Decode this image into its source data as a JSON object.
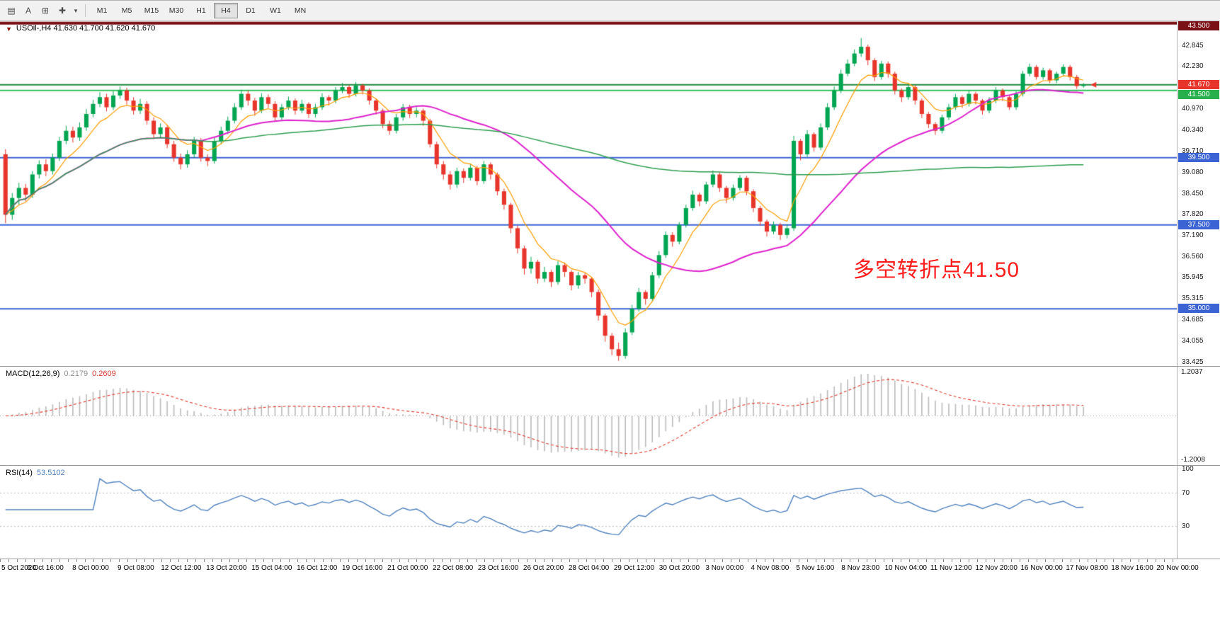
{
  "toolbar": {
    "icon_buttons": [
      {
        "name": "chart-grid-icon",
        "glyph": "▤"
      },
      {
        "name": "text-label-icon",
        "glyph": "A"
      },
      {
        "name": "template-icon",
        "glyph": "⊞"
      },
      {
        "name": "crosshair-icon",
        "glyph": "✚"
      },
      {
        "name": "dropdown-caret-icon",
        "glyph": "▾"
      }
    ],
    "timeframes": [
      {
        "label": "M1",
        "selected": false
      },
      {
        "label": "M5",
        "selected": false
      },
      {
        "label": "M15",
        "selected": false
      },
      {
        "label": "M30",
        "selected": false
      },
      {
        "label": "H1",
        "selected": false
      },
      {
        "label": "H4",
        "selected": true
      },
      {
        "label": "D1",
        "selected": false
      },
      {
        "label": "W1",
        "selected": false
      },
      {
        "label": "MN",
        "selected": false
      }
    ]
  },
  "chart": {
    "title_marker": "▼",
    "symbol_title": "USOil-,H4 41.630 41.700 41.620 41.670",
    "annotation": "多空转折点41.50",
    "colors": {
      "up": "#00a551",
      "down": "#e8352c",
      "macd_hist": "#bdbdbd",
      "macd_signal": "#e03c31",
      "rsi_line": "#4f81bd",
      "level_blue": "#3b63d4",
      "tag_dark_red": "#7a1016",
      "tag_red": "#e8352c",
      "tag_green": "#28b04c"
    },
    "y_axis": {
      "ticks": [
        "42.845",
        "42.230",
        "40.970",
        "40.340",
        "39.710",
        "39.080",
        "38.450",
        "37.820",
        "37.190",
        "36.560",
        "35.945",
        "35.315",
        "34.685",
        "34.055",
        "33.425"
      ],
      "tags": [
        {
          "label": "43.500",
          "price": 43.5,
          "bg": "#7a1016"
        },
        {
          "label": "41.670",
          "price": 41.67,
          "bg": "#e8352c"
        },
        {
          "label": "41.500",
          "price": 41.5,
          "bg": "#28b04c"
        },
        {
          "label": "39.500",
          "price": 39.5,
          "bg": "#3b63d4"
        },
        {
          "label": "37.500",
          "price": 37.5,
          "bg": "#3b63d4"
        },
        {
          "label": "35.000",
          "price": 35.0,
          "bg": "#3b63d4"
        }
      ]
    }
  },
  "macd": {
    "name": "MACD(12,26,9)",
    "value_main": "0.2179",
    "value_signal": "0.2609",
    "axis_top": "1.2037",
    "axis_bottom": "-1.2008"
  },
  "rsi": {
    "name": "RSI(14)",
    "value": "53.5102",
    "axis_labels": [
      "100",
      "70",
      "30"
    ]
  },
  "chart_data": {
    "type": "candlestick",
    "title": "USOil-,H4",
    "symbol": "USOil-",
    "timeframe": "H4",
    "ohlc_display": {
      "open": "41.630",
      "high": "41.700",
      "low": "41.620",
      "close": "41.670"
    },
    "ylim": [
      33.425,
      43.5
    ],
    "candles": [
      [
        39.6,
        39.75,
        37.55,
        37.8
      ],
      [
        37.8,
        38.45,
        37.65,
        38.3
      ],
      [
        38.3,
        38.75,
        38.1,
        38.6
      ],
      [
        38.6,
        38.72,
        38.2,
        38.4
      ],
      [
        38.4,
        39.1,
        38.3,
        39.0
      ],
      [
        39.0,
        39.42,
        38.88,
        39.3
      ],
      [
        39.3,
        39.45,
        38.95,
        39.1
      ],
      [
        39.1,
        39.62,
        39.0,
        39.5
      ],
      [
        39.5,
        40.12,
        39.4,
        40.0
      ],
      [
        40.0,
        40.45,
        39.9,
        40.3
      ],
      [
        40.3,
        40.42,
        39.95,
        40.1
      ],
      [
        40.1,
        40.55,
        40.0,
        40.4
      ],
      [
        40.4,
        40.95,
        40.3,
        40.8
      ],
      [
        40.8,
        41.22,
        40.7,
        41.1
      ],
      [
        41.1,
        41.45,
        41.0,
        41.3
      ],
      [
        41.3,
        41.4,
        40.88,
        41.0
      ],
      [
        41.0,
        41.48,
        40.92,
        41.35
      ],
      [
        41.35,
        41.62,
        41.25,
        41.5
      ],
      [
        41.5,
        41.58,
        41.08,
        41.2
      ],
      [
        41.2,
        41.3,
        40.78,
        40.9
      ],
      [
        40.9,
        41.25,
        40.8,
        41.1
      ],
      [
        41.1,
        41.18,
        40.48,
        40.6
      ],
      [
        40.6,
        40.7,
        40.05,
        40.2
      ],
      [
        40.2,
        40.52,
        40.1,
        40.4
      ],
      [
        40.4,
        40.48,
        39.78,
        39.9
      ],
      [
        39.9,
        40.0,
        39.38,
        39.5
      ],
      [
        39.5,
        39.62,
        39.15,
        39.3
      ],
      [
        39.3,
        39.72,
        39.2,
        39.6
      ],
      [
        39.6,
        40.12,
        39.5,
        40.0
      ],
      [
        40.0,
        40.08,
        39.38,
        39.5
      ],
      [
        39.5,
        39.6,
        39.25,
        39.4
      ],
      [
        39.4,
        40.1,
        39.32,
        40.0
      ],
      [
        40.0,
        40.42,
        39.9,
        40.3
      ],
      [
        40.3,
        40.72,
        40.2,
        40.6
      ],
      [
        40.6,
        41.12,
        40.52,
        41.0
      ],
      [
        41.0,
        41.52,
        40.92,
        41.4
      ],
      [
        41.4,
        41.5,
        41.05,
        41.2
      ],
      [
        41.2,
        41.28,
        40.75,
        40.9
      ],
      [
        40.9,
        41.42,
        40.82,
        41.3
      ],
      [
        41.3,
        41.38,
        40.98,
        41.1
      ],
      [
        41.1,
        41.18,
        40.58,
        40.7
      ],
      [
        40.7,
        41.1,
        40.62,
        41.0
      ],
      [
        41.0,
        41.32,
        40.92,
        41.2
      ],
      [
        41.2,
        41.26,
        40.78,
        40.9
      ],
      [
        40.9,
        41.22,
        40.82,
        41.1
      ],
      [
        41.1,
        41.15,
        40.68,
        40.8
      ],
      [
        40.8,
        41.1,
        40.7,
        41.0
      ],
      [
        41.0,
        41.42,
        40.92,
        41.3
      ],
      [
        41.3,
        41.36,
        41.05,
        41.2
      ],
      [
        41.2,
        41.6,
        41.12,
        41.5
      ],
      [
        41.5,
        41.72,
        41.42,
        41.6
      ],
      [
        41.6,
        41.66,
        41.28,
        41.4
      ],
      [
        41.4,
        41.75,
        41.32,
        41.65
      ],
      [
        41.65,
        41.7,
        41.38,
        41.5
      ],
      [
        41.5,
        41.56,
        41.08,
        41.2
      ],
      [
        41.2,
        41.26,
        40.78,
        40.9
      ],
      [
        40.9,
        40.96,
        40.38,
        40.5
      ],
      [
        40.5,
        40.6,
        40.18,
        40.3
      ],
      [
        40.3,
        40.8,
        40.22,
        40.7
      ],
      [
        40.7,
        41.1,
        40.6,
        41.0
      ],
      [
        41.0,
        41.08,
        40.68,
        40.8
      ],
      [
        40.8,
        41.0,
        40.7,
        40.9
      ],
      [
        40.9,
        40.96,
        40.45,
        40.6
      ],
      [
        40.6,
        40.66,
        39.8,
        39.9
      ],
      [
        39.9,
        39.98,
        39.18,
        39.3
      ],
      [
        39.3,
        39.4,
        38.85,
        39.0
      ],
      [
        39.0,
        39.1,
        38.55,
        38.7
      ],
      [
        38.7,
        39.2,
        38.6,
        39.1
      ],
      [
        39.1,
        39.18,
        38.75,
        38.9
      ],
      [
        38.9,
        39.32,
        38.82,
        39.2
      ],
      [
        39.2,
        39.26,
        38.68,
        38.8
      ],
      [
        38.8,
        39.4,
        38.72,
        39.3
      ],
      [
        39.3,
        39.36,
        38.85,
        39.0
      ],
      [
        39.0,
        39.06,
        38.38,
        38.5
      ],
      [
        38.5,
        38.58,
        37.95,
        38.1
      ],
      [
        38.1,
        38.16,
        37.25,
        37.4
      ],
      [
        37.4,
        37.48,
        36.65,
        36.8
      ],
      [
        36.8,
        36.88,
        36.02,
        36.2
      ],
      [
        36.2,
        36.55,
        36.05,
        36.4
      ],
      [
        36.4,
        36.46,
        35.75,
        35.9
      ],
      [
        35.9,
        36.25,
        35.8,
        36.1
      ],
      [
        36.1,
        36.16,
        35.65,
        35.8
      ],
      [
        35.8,
        36.42,
        35.72,
        36.3
      ],
      [
        36.3,
        36.38,
        35.95,
        36.1
      ],
      [
        36.1,
        36.15,
        35.55,
        35.7
      ],
      [
        35.7,
        36.1,
        35.6,
        36.0
      ],
      [
        36.0,
        36.06,
        35.75,
        35.9
      ],
      [
        35.9,
        35.95,
        35.35,
        35.5
      ],
      [
        35.5,
        35.58,
        34.65,
        34.8
      ],
      [
        34.8,
        34.86,
        34.02,
        34.2
      ],
      [
        34.2,
        34.28,
        33.62,
        33.8
      ],
      [
        33.8,
        34.0,
        33.45,
        33.6
      ],
      [
        33.6,
        34.42,
        33.52,
        34.3
      ],
      [
        34.3,
        35.12,
        34.22,
        35.0
      ],
      [
        35.0,
        35.62,
        34.92,
        35.5
      ],
      [
        35.5,
        35.56,
        35.12,
        35.3
      ],
      [
        35.3,
        36.1,
        35.22,
        36.0
      ],
      [
        36.0,
        36.72,
        35.92,
        36.6
      ],
      [
        36.6,
        37.3,
        36.52,
        37.2
      ],
      [
        37.2,
        37.28,
        36.85,
        37.0
      ],
      [
        37.0,
        37.58,
        36.92,
        37.5
      ],
      [
        37.5,
        38.1,
        37.42,
        38.0
      ],
      [
        38.0,
        38.52,
        37.92,
        38.4
      ],
      [
        38.4,
        38.46,
        38.05,
        38.2
      ],
      [
        38.2,
        38.78,
        38.12,
        38.7
      ],
      [
        38.7,
        39.12,
        38.62,
        39.0
      ],
      [
        39.0,
        39.06,
        38.48,
        38.6
      ],
      [
        38.6,
        38.66,
        38.15,
        38.3
      ],
      [
        38.3,
        38.7,
        38.22,
        38.6
      ],
      [
        38.6,
        38.98,
        38.52,
        38.9
      ],
      [
        38.9,
        38.96,
        38.38,
        38.5
      ],
      [
        38.5,
        38.56,
        37.88,
        38.0
      ],
      [
        38.0,
        38.06,
        37.48,
        37.6
      ],
      [
        37.6,
        37.66,
        37.15,
        37.3
      ],
      [
        37.3,
        37.6,
        37.22,
        37.5
      ],
      [
        37.5,
        37.56,
        37.05,
        37.2
      ],
      [
        37.2,
        37.52,
        37.1,
        37.4
      ],
      [
        37.4,
        40.15,
        37.32,
        40.0
      ],
      [
        40.0,
        40.06,
        39.42,
        39.6
      ],
      [
        39.6,
        40.32,
        39.52,
        40.2
      ],
      [
        40.2,
        40.26,
        39.68,
        39.8
      ],
      [
        39.8,
        40.52,
        39.72,
        40.4
      ],
      [
        40.4,
        41.12,
        40.32,
        41.0
      ],
      [
        41.0,
        41.62,
        40.92,
        41.5
      ],
      [
        41.5,
        42.12,
        41.42,
        42.0
      ],
      [
        42.0,
        42.42,
        41.92,
        42.3
      ],
      [
        42.3,
        42.72,
        42.22,
        42.6
      ],
      [
        42.6,
        43.06,
        42.5,
        42.8
      ],
      [
        42.8,
        42.86,
        42.25,
        42.4
      ],
      [
        42.4,
        42.46,
        41.78,
        41.9
      ],
      [
        41.9,
        42.38,
        41.82,
        42.3
      ],
      [
        42.3,
        42.36,
        41.88,
        42.0
      ],
      [
        42.0,
        42.06,
        41.38,
        41.5
      ],
      [
        41.5,
        41.56,
        41.15,
        41.3
      ],
      [
        41.3,
        41.7,
        41.22,
        41.6
      ],
      [
        41.6,
        41.66,
        41.08,
        41.2
      ],
      [
        41.2,
        41.26,
        40.68,
        40.8
      ],
      [
        40.8,
        40.86,
        40.38,
        40.5
      ],
      [
        40.5,
        40.56,
        40.18,
        40.3
      ],
      [
        40.3,
        40.78,
        40.22,
        40.7
      ],
      [
        40.7,
        41.1,
        40.62,
        41.0
      ],
      [
        41.0,
        41.4,
        40.92,
        41.3
      ],
      [
        41.3,
        41.36,
        40.98,
        41.1
      ],
      [
        41.1,
        41.5,
        41.02,
        41.4
      ],
      [
        41.4,
        41.46,
        41.08,
        41.2
      ],
      [
        41.2,
        41.25,
        40.78,
        40.9
      ],
      [
        40.9,
        41.3,
        40.82,
        41.2
      ],
      [
        41.2,
        41.6,
        41.12,
        41.5
      ],
      [
        41.5,
        41.56,
        41.18,
        41.3
      ],
      [
        41.3,
        41.36,
        40.92,
        41.0
      ],
      [
        41.0,
        41.48,
        40.92,
        41.4
      ],
      [
        41.4,
        42.08,
        41.32,
        42.0
      ],
      [
        42.0,
        42.3,
        41.92,
        42.2
      ],
      [
        42.2,
        42.26,
        41.82,
        41.9
      ],
      [
        41.9,
        42.18,
        41.82,
        42.1
      ],
      [
        42.1,
        42.15,
        41.72,
        41.8
      ],
      [
        41.8,
        42.06,
        41.72,
        42.0
      ],
      [
        42.0,
        42.28,
        41.92,
        42.2
      ],
      [
        42.2,
        42.26,
        41.8,
        41.9
      ],
      [
        41.9,
        41.96,
        41.55,
        41.63
      ],
      [
        41.63,
        41.72,
        41.58,
        41.67
      ]
    ],
    "moving_averages": [
      {
        "name": "ma-fast",
        "method": "ema",
        "window": 7,
        "color": "#ff9d00",
        "width": 1.2
      },
      {
        "name": "ma-mid",
        "method": "sma",
        "window": 30,
        "color": "#dd22cc",
        "width": 2
      },
      {
        "name": "ma-slow",
        "method": "sma",
        "window": 110,
        "color": "#2e9e4f",
        "width": 1.5
      }
    ],
    "horizontal_levels": [
      {
        "price": 43.5,
        "color": "#7a1016",
        "width": 4
      },
      {
        "price": 41.67,
        "color": "#1e8a3e",
        "width": 2
      },
      {
        "price": 41.5,
        "color": "#2fc15c",
        "width": 2
      },
      {
        "price": 39.5,
        "color": "#3b63d4",
        "width": 2
      },
      {
        "price": 37.5,
        "color": "#3b63d4",
        "width": 2
      },
      {
        "price": 35.0,
        "color": "#3b63d4",
        "width": 2
      }
    ],
    "indicators": [
      {
        "type": "macd",
        "fast": 12,
        "slow": 26,
        "signal": 9,
        "last_main": 0.2179,
        "last_signal": 0.2609,
        "scale_top": 1.2037,
        "scale_bottom": -1.2008
      },
      {
        "type": "rsi",
        "period": 14,
        "last": 53.5102,
        "levels": [
          70,
          30
        ]
      }
    ],
    "x_labels": [
      "5 Oct 2020",
      "6 Oct 16:00",
      "8 Oct 00:00",
      "9 Oct 08:00",
      "12 Oct 12:00",
      "13 Oct 20:00",
      "15 Oct 04:00",
      "16 Oct 12:00",
      "19 Oct 16:00",
      "21 Oct 00:00",
      "22 Oct 08:00",
      "23 Oct 16:00",
      "26 Oct 20:00",
      "28 Oct 04:00",
      "29 Oct 12:00",
      "30 Oct 20:00",
      "3 Nov 00:00",
      "4 Nov 08:00",
      "5 Nov 16:00",
      "8 Nov 23:00",
      "10 Nov 04:00",
      "11 Nov 12:00",
      "12 Nov 20:00",
      "16 Nov 00:00",
      "17 Nov 08:00",
      "18 Nov 16:00",
      "20 Nov 00:00"
    ]
  }
}
